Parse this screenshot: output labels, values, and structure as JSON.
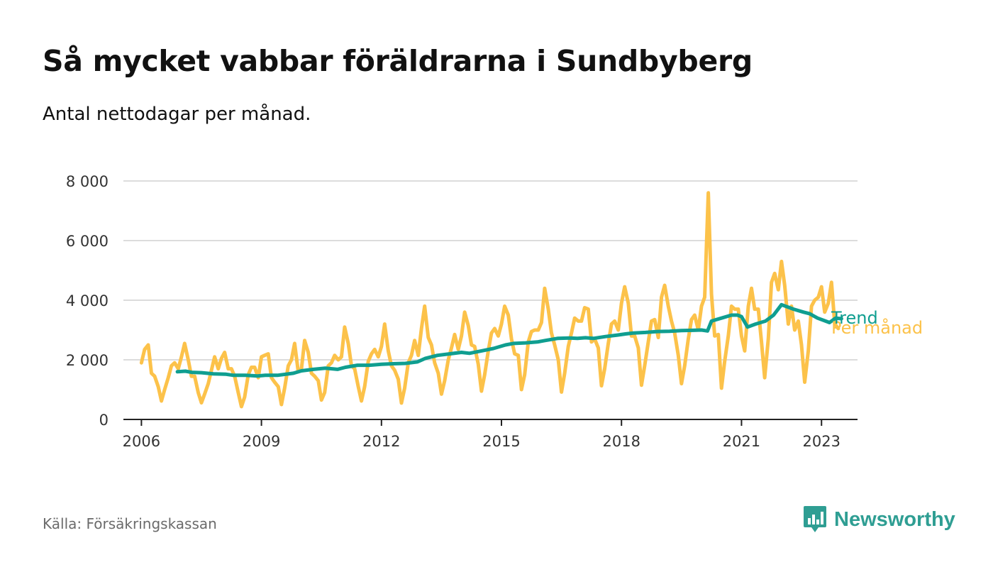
{
  "header": {
    "title": "Så mycket vabbar föräldrarna i Sundbyberg",
    "subtitle": "Antal nettodagar per månad."
  },
  "footer": {
    "source": "Källa: Försäkringskassan",
    "brand": "Newsworthy",
    "brand_icon": "bar-chart-badge-icon"
  },
  "colors": {
    "monthly": "#fcc24a",
    "trend": "#0f9e90",
    "grid": "#dcdcdc",
    "axis": "#222222",
    "brand": "#2f9e93"
  },
  "chart_data": {
    "type": "line",
    "title": "Så mycket vabbar föräldrarna i Sundbyberg",
    "subtitle": "Antal nettodagar per månad.",
    "xlabel": "",
    "ylabel": "",
    "xlim": [
      2005.55,
      2023.9
    ],
    "ylim": [
      0,
      8000
    ],
    "y_ticks": [
      0,
      2000,
      4000,
      6000,
      8000
    ],
    "y_tick_labels": [
      "0",
      "2 000",
      "4 000",
      "6 000",
      "8 000"
    ],
    "x_ticks": [
      2006,
      2009,
      2012,
      2015,
      2018,
      2021,
      2023
    ],
    "x_tick_labels": [
      "2006",
      "2009",
      "2012",
      "2015",
      "2018",
      "2021",
      "2023"
    ],
    "grid": "horizontal",
    "legend": "inline labels at end of lines",
    "series": [
      {
        "name": "Per månad",
        "color": "#fcc24a",
        "points": [
          [
            2006.0,
            1900
          ],
          [
            2006.08,
            2350
          ],
          [
            2006.17,
            2500
          ],
          [
            2006.25,
            1550
          ],
          [
            2006.33,
            1450
          ],
          [
            2006.42,
            1100
          ],
          [
            2006.5,
            620
          ],
          [
            2006.58,
            1000
          ],
          [
            2006.67,
            1400
          ],
          [
            2006.75,
            1800
          ],
          [
            2006.83,
            1900
          ],
          [
            2006.92,
            1700
          ],
          [
            2007.0,
            2100
          ],
          [
            2007.08,
            2550
          ],
          [
            2007.17,
            2000
          ],
          [
            2007.25,
            1450
          ],
          [
            2007.33,
            1450
          ],
          [
            2007.42,
            900
          ],
          [
            2007.5,
            560
          ],
          [
            2007.58,
            850
          ],
          [
            2007.67,
            1200
          ],
          [
            2007.75,
            1650
          ],
          [
            2007.83,
            2100
          ],
          [
            2007.92,
            1700
          ],
          [
            2008.0,
            2050
          ],
          [
            2008.08,
            2250
          ],
          [
            2008.17,
            1700
          ],
          [
            2008.25,
            1700
          ],
          [
            2008.33,
            1450
          ],
          [
            2008.42,
            900
          ],
          [
            2008.5,
            430
          ],
          [
            2008.58,
            750
          ],
          [
            2008.67,
            1500
          ],
          [
            2008.75,
            1750
          ],
          [
            2008.83,
            1750
          ],
          [
            2008.92,
            1400
          ],
          [
            2009.0,
            2100
          ],
          [
            2009.08,
            2150
          ],
          [
            2009.17,
            2200
          ],
          [
            2009.25,
            1400
          ],
          [
            2009.33,
            1250
          ],
          [
            2009.42,
            1100
          ],
          [
            2009.5,
            500
          ],
          [
            2009.58,
            1050
          ],
          [
            2009.67,
            1800
          ],
          [
            2009.75,
            2000
          ],
          [
            2009.83,
            2550
          ],
          [
            2009.92,
            1600
          ],
          [
            2010.0,
            1700
          ],
          [
            2010.08,
            2650
          ],
          [
            2010.17,
            2250
          ],
          [
            2010.25,
            1550
          ],
          [
            2010.33,
            1450
          ],
          [
            2010.42,
            1300
          ],
          [
            2010.5,
            650
          ],
          [
            2010.58,
            900
          ],
          [
            2010.67,
            1800
          ],
          [
            2010.75,
            1900
          ],
          [
            2010.83,
            2150
          ],
          [
            2010.92,
            2000
          ],
          [
            2011.0,
            2100
          ],
          [
            2011.08,
            3100
          ],
          [
            2011.17,
            2550
          ],
          [
            2011.25,
            1800
          ],
          [
            2011.33,
            1700
          ],
          [
            2011.42,
            1100
          ],
          [
            2011.5,
            620
          ],
          [
            2011.58,
            1100
          ],
          [
            2011.67,
            1950
          ],
          [
            2011.75,
            2200
          ],
          [
            2011.83,
            2350
          ],
          [
            2011.92,
            2100
          ],
          [
            2012.0,
            2450
          ],
          [
            2012.08,
            3200
          ],
          [
            2012.17,
            2300
          ],
          [
            2012.25,
            1800
          ],
          [
            2012.33,
            1650
          ],
          [
            2012.42,
            1350
          ],
          [
            2012.5,
            550
          ],
          [
            2012.58,
            1050
          ],
          [
            2012.67,
            1900
          ],
          [
            2012.75,
            2150
          ],
          [
            2012.83,
            2650
          ],
          [
            2012.92,
            2150
          ],
          [
            2013.0,
            3050
          ],
          [
            2013.08,
            3800
          ],
          [
            2013.17,
            2750
          ],
          [
            2013.25,
            2500
          ],
          [
            2013.33,
            1900
          ],
          [
            2013.42,
            1550
          ],
          [
            2013.5,
            850
          ],
          [
            2013.58,
            1300
          ],
          [
            2013.67,
            2000
          ],
          [
            2013.75,
            2400
          ],
          [
            2013.83,
            2850
          ],
          [
            2013.92,
            2350
          ],
          [
            2014.0,
            2800
          ],
          [
            2014.08,
            3600
          ],
          [
            2014.17,
            3150
          ],
          [
            2014.25,
            2500
          ],
          [
            2014.33,
            2450
          ],
          [
            2014.42,
            1850
          ],
          [
            2014.5,
            950
          ],
          [
            2014.58,
            1500
          ],
          [
            2014.67,
            2300
          ],
          [
            2014.75,
            2900
          ],
          [
            2014.83,
            3050
          ],
          [
            2014.92,
            2800
          ],
          [
            2015.0,
            3200
          ],
          [
            2015.08,
            3800
          ],
          [
            2015.17,
            3500
          ],
          [
            2015.25,
            2700
          ],
          [
            2015.33,
            2200
          ],
          [
            2015.42,
            2150
          ],
          [
            2015.5,
            1000
          ],
          [
            2015.58,
            1500
          ],
          [
            2015.67,
            2600
          ],
          [
            2015.75,
            2950
          ],
          [
            2015.83,
            3000
          ],
          [
            2015.92,
            3000
          ],
          [
            2016.0,
            3250
          ],
          [
            2016.08,
            4400
          ],
          [
            2016.17,
            3700
          ],
          [
            2016.25,
            2900
          ],
          [
            2016.33,
            2500
          ],
          [
            2016.42,
            2000
          ],
          [
            2016.5,
            920
          ],
          [
            2016.58,
            1550
          ],
          [
            2016.67,
            2450
          ],
          [
            2016.75,
            2900
          ],
          [
            2016.83,
            3400
          ],
          [
            2016.92,
            3300
          ],
          [
            2017.0,
            3300
          ],
          [
            2017.08,
            3750
          ],
          [
            2017.17,
            3700
          ],
          [
            2017.25,
            2600
          ],
          [
            2017.33,
            2700
          ],
          [
            2017.42,
            2400
          ],
          [
            2017.5,
            1130
          ],
          [
            2017.58,
            1700
          ],
          [
            2017.67,
            2550
          ],
          [
            2017.75,
            3200
          ],
          [
            2017.83,
            3300
          ],
          [
            2017.92,
            3000
          ],
          [
            2018.0,
            3900
          ],
          [
            2018.08,
            4450
          ],
          [
            2018.17,
            3900
          ],
          [
            2018.25,
            2800
          ],
          [
            2018.33,
            2800
          ],
          [
            2018.42,
            2400
          ],
          [
            2018.5,
            1150
          ],
          [
            2018.58,
            1800
          ],
          [
            2018.67,
            2600
          ],
          [
            2018.75,
            3300
          ],
          [
            2018.83,
            3350
          ],
          [
            2018.92,
            2750
          ],
          [
            2019.0,
            4100
          ],
          [
            2019.08,
            4500
          ],
          [
            2019.17,
            3800
          ],
          [
            2019.25,
            3300
          ],
          [
            2019.33,
            2900
          ],
          [
            2019.42,
            2150
          ],
          [
            2019.5,
            1200
          ],
          [
            2019.58,
            1800
          ],
          [
            2019.67,
            2700
          ],
          [
            2019.75,
            3350
          ],
          [
            2019.83,
            3500
          ],
          [
            2019.92,
            3000
          ],
          [
            2020.0,
            3800
          ],
          [
            2020.08,
            4100
          ],
          [
            2020.17,
            7600
          ],
          [
            2020.25,
            4200
          ],
          [
            2020.33,
            2800
          ],
          [
            2020.42,
            2850
          ],
          [
            2020.5,
            1050
          ],
          [
            2020.58,
            1950
          ],
          [
            2020.67,
            2800
          ],
          [
            2020.75,
            3800
          ],
          [
            2020.83,
            3700
          ],
          [
            2020.92,
            3700
          ],
          [
            2021.0,
            2800
          ],
          [
            2021.08,
            2300
          ],
          [
            2021.17,
            3800
          ],
          [
            2021.25,
            4400
          ],
          [
            2021.33,
            3700
          ],
          [
            2021.42,
            3700
          ],
          [
            2021.5,
            2600
          ],
          [
            2021.58,
            1400
          ],
          [
            2021.67,
            2700
          ],
          [
            2021.75,
            4600
          ],
          [
            2021.83,
            4900
          ],
          [
            2021.92,
            4350
          ],
          [
            2022.0,
            5300
          ],
          [
            2022.08,
            4500
          ],
          [
            2022.17,
            3200
          ],
          [
            2022.25,
            3800
          ],
          [
            2022.33,
            3000
          ],
          [
            2022.42,
            3300
          ],
          [
            2022.5,
            2500
          ],
          [
            2022.58,
            1250
          ],
          [
            2022.67,
            2300
          ],
          [
            2022.75,
            3800
          ],
          [
            2022.83,
            4000
          ],
          [
            2022.92,
            4100
          ],
          [
            2023.0,
            4450
          ],
          [
            2023.08,
            3600
          ],
          [
            2023.17,
            3900
          ],
          [
            2023.25,
            4600
          ],
          [
            2023.33,
            3200
          ],
          [
            2023.42,
            3050
          ]
        ]
      },
      {
        "name": "Trend",
        "color": "#0f9e90",
        "points": [
          [
            2006.9,
            1600
          ],
          [
            2007.1,
            1620
          ],
          [
            2007.25,
            1580
          ],
          [
            2007.5,
            1570
          ],
          [
            2007.8,
            1530
          ],
          [
            2008.1,
            1520
          ],
          [
            2008.3,
            1480
          ],
          [
            2008.6,
            1480
          ],
          [
            2008.9,
            1460
          ],
          [
            2009.1,
            1480
          ],
          [
            2009.4,
            1480
          ],
          [
            2009.8,
            1550
          ],
          [
            2010.0,
            1630
          ],
          [
            2010.3,
            1680
          ],
          [
            2010.6,
            1720
          ],
          [
            2010.9,
            1680
          ],
          [
            2011.1,
            1750
          ],
          [
            2011.4,
            1820
          ],
          [
            2011.7,
            1820
          ],
          [
            2012.0,
            1850
          ],
          [
            2012.3,
            1870
          ],
          [
            2012.6,
            1880
          ],
          [
            2012.9,
            1930
          ],
          [
            2013.1,
            2050
          ],
          [
            2013.4,
            2150
          ],
          [
            2013.7,
            2200
          ],
          [
            2014.0,
            2250
          ],
          [
            2014.2,
            2220
          ],
          [
            2014.5,
            2300
          ],
          [
            2014.8,
            2380
          ],
          [
            2015.1,
            2500
          ],
          [
            2015.3,
            2550
          ],
          [
            2015.6,
            2570
          ],
          [
            2015.9,
            2600
          ],
          [
            2016.1,
            2650
          ],
          [
            2016.4,
            2720
          ],
          [
            2016.7,
            2730
          ],
          [
            2016.9,
            2720
          ],
          [
            2017.1,
            2740
          ],
          [
            2017.3,
            2720
          ],
          [
            2017.6,
            2780
          ],
          [
            2017.9,
            2830
          ],
          [
            2018.1,
            2870
          ],
          [
            2018.3,
            2900
          ],
          [
            2018.6,
            2920
          ],
          [
            2018.9,
            2950
          ],
          [
            2019.2,
            2960
          ],
          [
            2019.5,
            2980
          ],
          [
            2019.8,
            2990
          ],
          [
            2020.0,
            3000
          ],
          [
            2020.15,
            2970
          ],
          [
            2020.25,
            3300
          ],
          [
            2020.5,
            3400
          ],
          [
            2020.75,
            3500
          ],
          [
            2020.9,
            3500
          ],
          [
            2021.0,
            3450
          ],
          [
            2021.15,
            3100
          ],
          [
            2021.35,
            3200
          ],
          [
            2021.6,
            3300
          ],
          [
            2021.8,
            3500
          ],
          [
            2022.0,
            3850
          ],
          [
            2022.3,
            3700
          ],
          [
            2022.55,
            3600
          ],
          [
            2022.7,
            3550
          ],
          [
            2022.9,
            3400
          ],
          [
            2023.1,
            3300
          ],
          [
            2023.2,
            3250
          ],
          [
            2023.35,
            3400
          ],
          [
            2023.5,
            3380
          ]
        ]
      }
    ]
  }
}
